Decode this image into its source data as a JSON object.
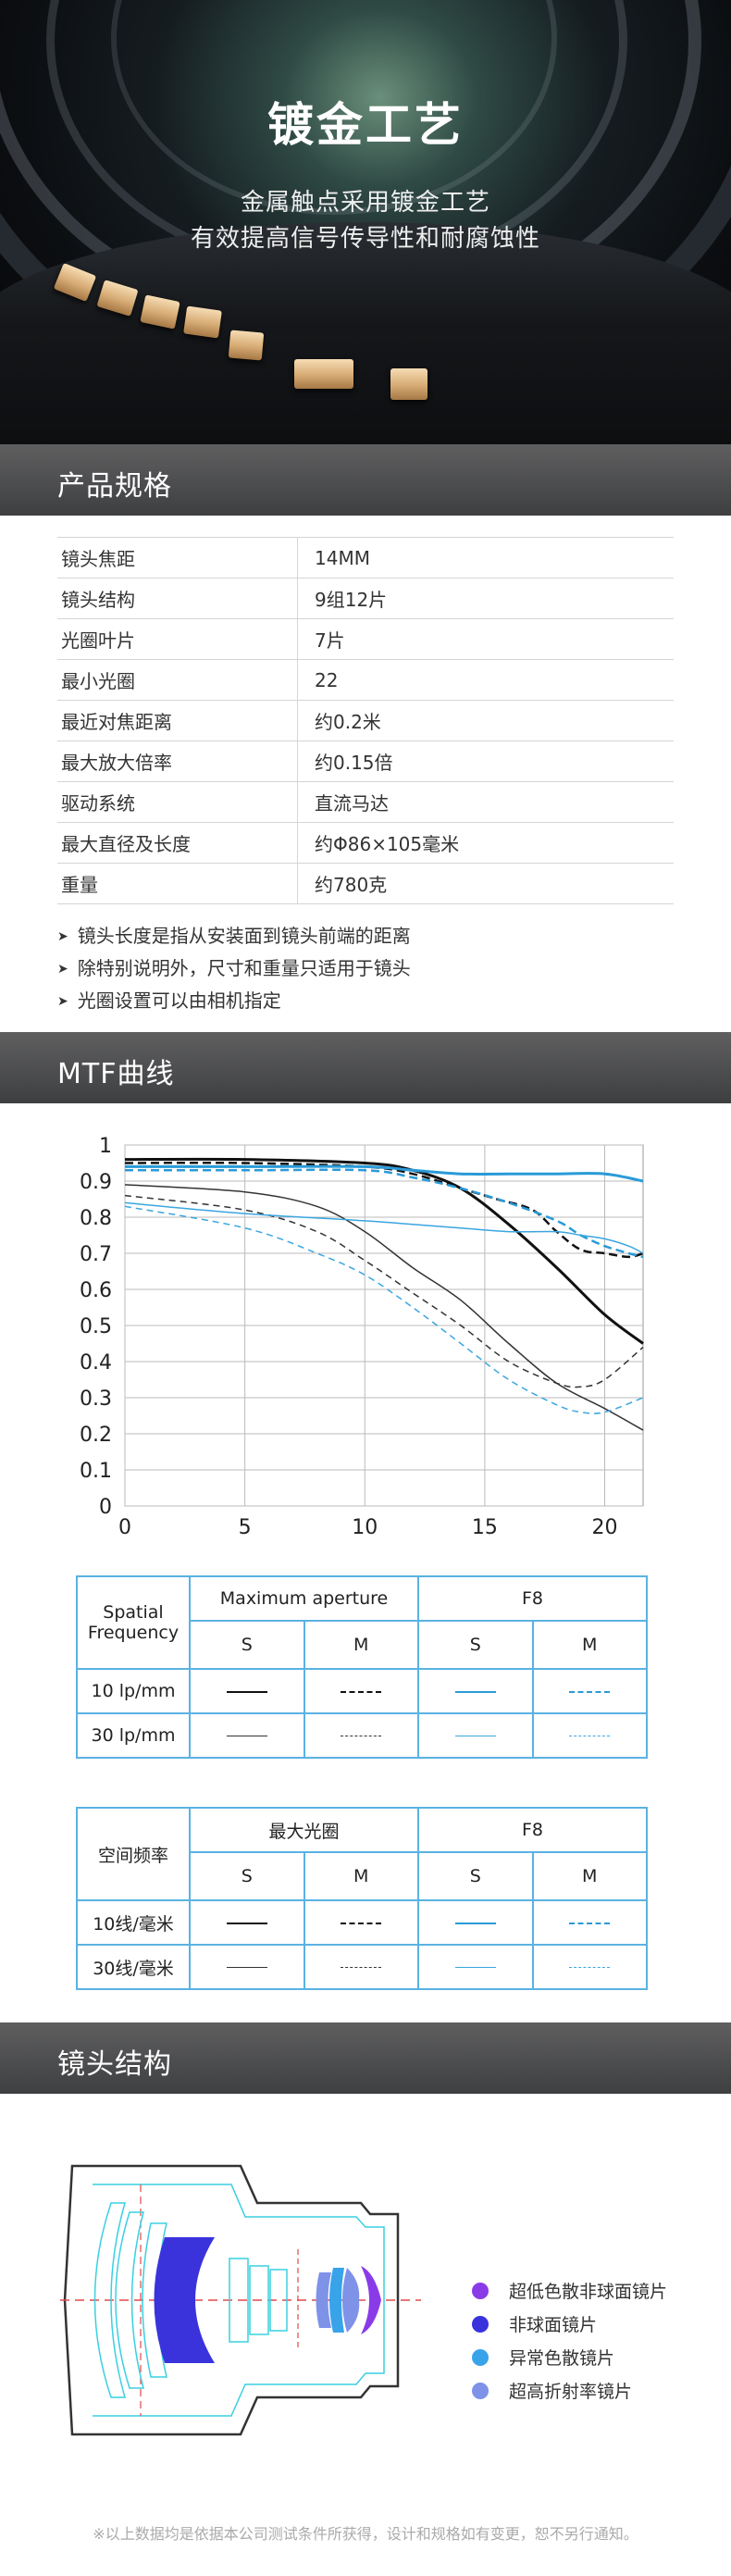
{
  "hero": {
    "title": "镀金工艺",
    "subtitle_line1": "金属触点采用镀金工艺",
    "subtitle_line2": "有效提高信号传导性和耐腐蚀性"
  },
  "specs": {
    "heading": "产品规格",
    "rows": [
      {
        "key": "镜头焦距",
        "value": "14MM"
      },
      {
        "key": "镜头结构",
        "value": "9组12片"
      },
      {
        "key": "光圈叶片",
        "value": "7片"
      },
      {
        "key": "最小光圈",
        "value": "22"
      },
      {
        "key": "最近对焦距离",
        "value": "约0.2米"
      },
      {
        "key": "最大放大倍率",
        "value": "约0.15倍"
      },
      {
        "key": "驱动系统",
        "value": "直流马达"
      },
      {
        "key": "最大直径及长度",
        "value": "约Φ86×105毫米"
      },
      {
        "key": "重量",
        "value": "约780克"
      }
    ],
    "notes": [
      "镜头长度是指从安装面到镜头前端的距离",
      "除特别说明外，尺寸和重量只适用于镜头",
      "光圈设置可以由相机指定"
    ]
  },
  "mtf": {
    "heading": "MTF曲线",
    "legend_en": {
      "row_header": "Spatial Frequency",
      "group1": "Maximum aperture",
      "group2": "F8",
      "col_s": "S",
      "col_m": "M",
      "row1": "10 lp/mm",
      "row2": "30 lp/mm"
    },
    "legend_cn": {
      "row_header": "空间频率",
      "group1": "最大光圈",
      "group2": "F8",
      "col_s": "S",
      "col_m": "M",
      "row1": "10线/毫米",
      "row2": "30线/毫米"
    }
  },
  "chart_data": {
    "type": "line",
    "xlim": [
      0,
      21.6
    ],
    "ylim": [
      0,
      1
    ],
    "x_ticks": [
      "0",
      "5",
      "10",
      "15",
      "20"
    ],
    "y_ticks": [
      "0",
      "0.1",
      "0.2",
      "0.3",
      "0.4",
      "0.5",
      "0.6",
      "0.7",
      "0.8",
      "0.9",
      "1"
    ],
    "grid": true,
    "series": [
      {
        "color": "#111111",
        "dash": "solid",
        "width": 3,
        "x": [
          0,
          5,
          10,
          12,
          14,
          16,
          18,
          20,
          21.6
        ],
        "y": [
          0.96,
          0.96,
          0.95,
          0.93,
          0.88,
          0.78,
          0.66,
          0.53,
          0.45
        ]
      },
      {
        "color": "#111111",
        "dash": "dashed",
        "width": 2.5,
        "x": [
          0,
          5,
          10,
          12,
          14,
          15.5,
          17,
          18,
          19,
          20,
          21,
          21.6
        ],
        "y": [
          0.95,
          0.95,
          0.94,
          0.92,
          0.88,
          0.85,
          0.82,
          0.76,
          0.71,
          0.7,
          0.69,
          0.7
        ]
      },
      {
        "color": "#2a9ad8",
        "dash": "solid",
        "width": 3,
        "x": [
          0,
          5,
          10,
          12,
          14,
          16,
          18,
          20,
          21.6
        ],
        "y": [
          0.94,
          0.94,
          0.94,
          0.93,
          0.92,
          0.92,
          0.92,
          0.92,
          0.9
        ]
      },
      {
        "color": "#2a9ad8",
        "dash": "dashed",
        "width": 2.5,
        "x": [
          0,
          5,
          10,
          12,
          14,
          16,
          18,
          19,
          20,
          21,
          21.6
        ],
        "y": [
          0.93,
          0.93,
          0.93,
          0.91,
          0.88,
          0.84,
          0.79,
          0.75,
          0.72,
          0.7,
          0.69
        ]
      },
      {
        "color": "#333333",
        "dash": "solid",
        "width": 1.5,
        "x": [
          0,
          5,
          8,
          10,
          12,
          14,
          16,
          18,
          20,
          21.6
        ],
        "y": [
          0.89,
          0.87,
          0.83,
          0.76,
          0.66,
          0.57,
          0.45,
          0.34,
          0.27,
          0.21
        ]
      },
      {
        "color": "#333333",
        "dash": "dashed",
        "width": 1.5,
        "x": [
          0,
          5,
          8,
          10,
          12,
          14,
          16,
          18,
          19,
          20,
          21.6
        ],
        "y": [
          0.86,
          0.82,
          0.76,
          0.68,
          0.59,
          0.5,
          0.4,
          0.34,
          0.33,
          0.35,
          0.44
        ]
      },
      {
        "color": "#3aa6e0",
        "dash": "solid",
        "width": 1.5,
        "x": [
          0,
          5,
          10,
          12,
          14,
          16,
          18,
          19,
          20,
          21,
          21.6
        ],
        "y": [
          0.84,
          0.81,
          0.79,
          0.78,
          0.77,
          0.76,
          0.76,
          0.75,
          0.74,
          0.72,
          0.7
        ]
      },
      {
        "color": "#3aa6e0",
        "dash": "dashed",
        "width": 1.5,
        "x": [
          0,
          5,
          8,
          10,
          12,
          14,
          16,
          18,
          19,
          20,
          21.6
        ],
        "y": [
          0.83,
          0.77,
          0.7,
          0.64,
          0.55,
          0.45,
          0.35,
          0.28,
          0.26,
          0.26,
          0.3
        ]
      }
    ]
  },
  "lens": {
    "heading": "镜头结构",
    "legend": [
      {
        "label": "超低色散非球面镜片",
        "color": "#8a3be8"
      },
      {
        "label": "非球面镜片",
        "color": "#3a33dc"
      },
      {
        "label": "异常色散镜片",
        "color": "#39a3ea"
      },
      {
        "label": "超高折射率镜片",
        "color": "#7e92e8"
      }
    ]
  },
  "footnote": "※以上数据均是依据本公司测试条件所获得，设计和规格如有变更，恕不另行通知。"
}
